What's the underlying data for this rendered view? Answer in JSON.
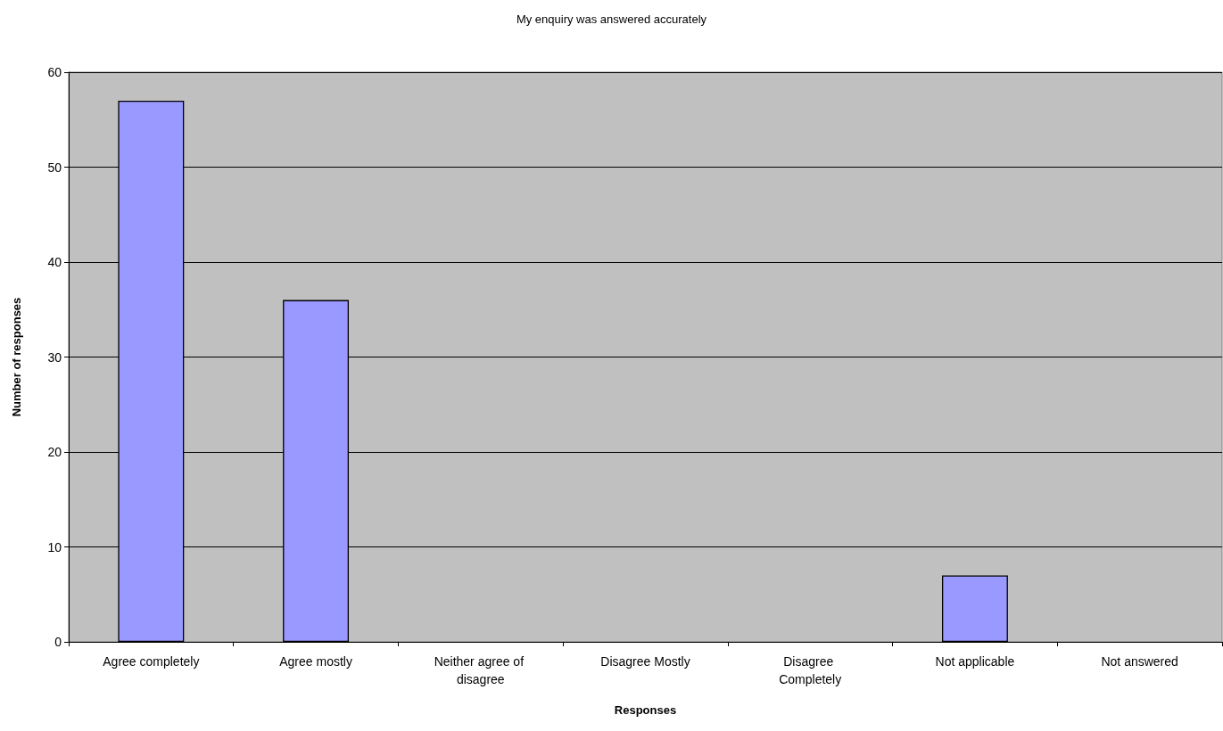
{
  "chart_data": {
    "type": "bar",
    "title": "My enquiry was answered accurately",
    "xlabel": "Responses",
    "ylabel": "Number of responses",
    "categories": [
      "Agree completely",
      "Agree mostly",
      "Neither agree of disagree",
      "Disagree Mostly",
      "Disagree Completely",
      "Not applicable",
      "Not answered"
    ],
    "values": [
      57,
      36,
      0,
      0,
      0,
      7,
      0
    ],
    "color": "#9999ff",
    "ylim": [
      0,
      60
    ],
    "yticks": [
      0,
      10,
      20,
      30,
      40,
      50,
      60
    ],
    "grid": "y"
  }
}
